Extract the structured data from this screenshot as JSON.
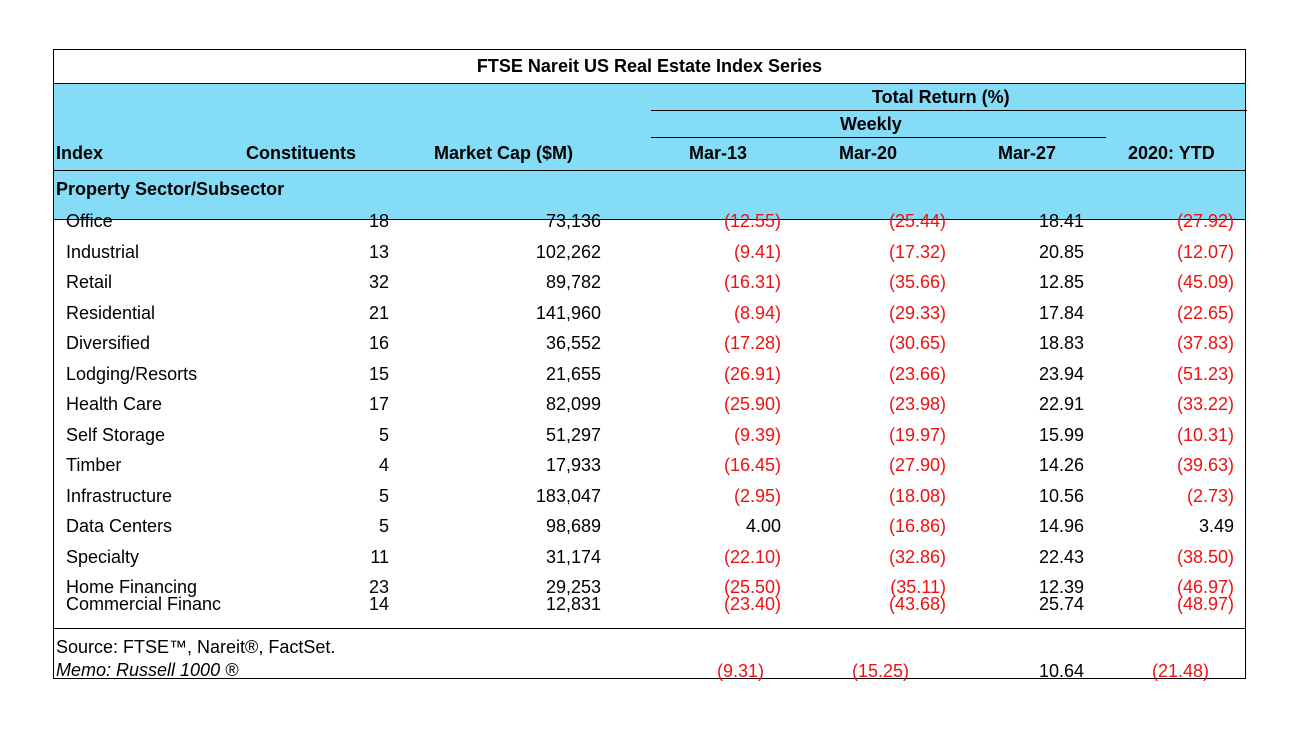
{
  "chart_data": {
    "type": "table",
    "title": "FTSE Nareit US Real Estate Index Series",
    "group_header": "Total Return (%)",
    "subgroup_header": "Weekly",
    "columns": [
      "Index",
      "Constituents",
      "Market Cap ($M)",
      "Mar-13",
      "Mar-20",
      "Mar-27",
      "2020: YTD"
    ],
    "section_title": "Property Sector/Subsector",
    "rows": [
      {
        "index": "Office",
        "constituents": "18",
        "market_cap": "73,136",
        "mar13": "(12.55)",
        "mar20": "(25.44)",
        "mar27": "18.41",
        "ytd": "(27.92)"
      },
      {
        "index": "Industrial",
        "constituents": "13",
        "market_cap": "102,262",
        "mar13": "(9.41)",
        "mar20": "(17.32)",
        "mar27": "20.85",
        "ytd": "(12.07)"
      },
      {
        "index": "Retail",
        "constituents": "32",
        "market_cap": "89,782",
        "mar13": "(16.31)",
        "mar20": "(35.66)",
        "mar27": "12.85",
        "ytd": "(45.09)"
      },
      {
        "index": "Residential",
        "constituents": "21",
        "market_cap": "141,960",
        "mar13": "(8.94)",
        "mar20": "(29.33)",
        "mar27": "17.84",
        "ytd": "(22.65)"
      },
      {
        "index": "Diversified",
        "constituents": "16",
        "market_cap": "36,552",
        "mar13": "(17.28)",
        "mar20": "(30.65)",
        "mar27": "18.83",
        "ytd": "(37.83)"
      },
      {
        "index": "Lodging/Resorts",
        "constituents": "15",
        "market_cap": "21,655",
        "mar13": "(26.91)",
        "mar20": "(23.66)",
        "mar27": "23.94",
        "ytd": "(51.23)"
      },
      {
        "index": "Health Care",
        "constituents": "17",
        "market_cap": "82,099",
        "mar13": "(25.90)",
        "mar20": "(23.98)",
        "mar27": "22.91",
        "ytd": "(33.22)"
      },
      {
        "index": "Self Storage",
        "constituents": "5",
        "market_cap": "51,297",
        "mar13": "(9.39)",
        "mar20": "(19.97)",
        "mar27": "15.99",
        "ytd": "(10.31)"
      },
      {
        "index": "Timber",
        "constituents": "4",
        "market_cap": "17,933",
        "mar13": "(16.45)",
        "mar20": "(27.90)",
        "mar27": "14.26",
        "ytd": "(39.63)"
      },
      {
        "index": "Infrastructure",
        "constituents": "5",
        "market_cap": "183,047",
        "mar13": "(2.95)",
        "mar20": "(18.08)",
        "mar27": "10.56",
        "ytd": "(2.73)"
      },
      {
        "index": "Data Centers",
        "constituents": "5",
        "market_cap": "98,689",
        "mar13": "4.00",
        "mar20": "(16.86)",
        "mar27": "14.96",
        "ytd": "3.49"
      },
      {
        "index": "Specialty",
        "constituents": "11",
        "market_cap": "31,174",
        "mar13": "(22.10)",
        "mar20": "(32.86)",
        "mar27": "22.43",
        "ytd": "(38.50)"
      },
      {
        "index": "Home Financing",
        "constituents": "23",
        "market_cap": "29,253",
        "mar13": "(25.50)",
        "mar20": "(35.11)",
        "mar27": "12.39",
        "ytd": "(46.97)"
      },
      {
        "index": "Commercial Financ",
        "constituents": "14",
        "market_cap": "12,831",
        "mar13": "(23.40)",
        "mar20": "(43.68)",
        "mar27": "25.74",
        "ytd": "(48.97)"
      }
    ],
    "source": "Source: FTSE™, Nareit®, FactSet.",
    "memo": {
      "label": "Memo: Russell 1000 ®",
      "mar13": "(9.31)",
      "mar20": "(15.25)",
      "mar27": "10.64",
      "ytd": "(21.48)"
    },
    "negative_color": "#ee1111",
    "header_color": "#84dcf6"
  }
}
